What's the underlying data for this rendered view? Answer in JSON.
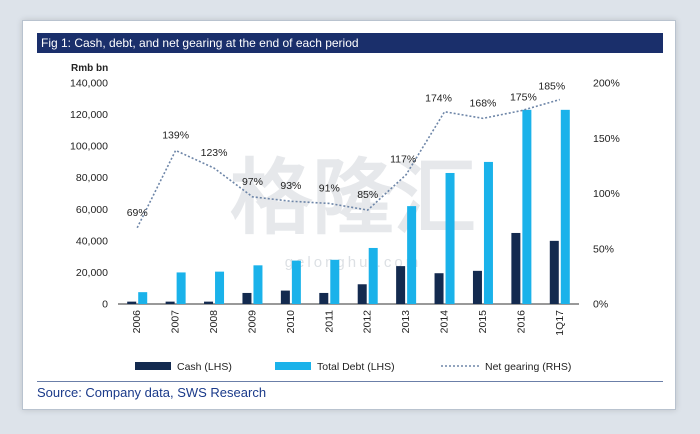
{
  "figure_title": "Fig 1: Cash, debt, and net gearing at the end of each period",
  "source": "Source: Company data, SWS Research",
  "watermark": "格隆汇",
  "watermark_url": "gelonghui.com",
  "colors": {
    "cash": "#132a4f",
    "debt": "#1ab2ea",
    "gearing": "#6e86a8",
    "title_bar": "#1a2f6b"
  },
  "chart_data": {
    "type": "bar",
    "categories": [
      "2006",
      "2007",
      "2008",
      "2009",
      "2010",
      "2011",
      "2012",
      "2013",
      "2014",
      "2015",
      "2016",
      "1Q17"
    ],
    "series": [
      {
        "name": "Cash (LHS)",
        "type": "bar",
        "axis": "left",
        "values": [
          1500,
          1500,
          1500,
          7000,
          8500,
          7000,
          12500,
          24000,
          19500,
          21000,
          45000,
          40000
        ]
      },
      {
        "name": "Total Debt (LHS)",
        "type": "bar",
        "axis": "left",
        "values": [
          7500,
          20000,
          20500,
          24500,
          27500,
          28000,
          35500,
          62000,
          83000,
          90000,
          123000,
          123000
        ]
      },
      {
        "name": "Net gearing (RHS)",
        "type": "line",
        "axis": "right",
        "values": [
          69,
          139,
          123,
          97,
          93,
          91,
          85,
          117,
          174,
          168,
          175,
          185
        ],
        "labels": [
          "69%",
          "139%",
          "123%",
          "97%",
          "93%",
          "91%",
          "85%",
          "117%",
          "174%",
          "168%",
          "175%",
          "185%"
        ]
      }
    ],
    "ylabel": "Rmb bn",
    "ylim": [
      0,
      140000
    ],
    "yticks": [
      "0",
      "20,000",
      "40,000",
      "60,000",
      "80,000",
      "100,000",
      "120,000",
      "140,000"
    ],
    "ytick_values": [
      0,
      20000,
      40000,
      60000,
      80000,
      100000,
      120000,
      140000
    ],
    "y2lim": [
      0,
      200
    ],
    "y2ticks": [
      "0%",
      "50%",
      "100%",
      "150%",
      "200%"
    ],
    "y2tick_values": [
      0,
      50,
      100,
      150,
      200
    ],
    "legend": [
      "Cash (LHS)",
      "Total Debt (LHS)",
      "Net gearing (RHS)"
    ],
    "legend_position": "bottom",
    "grid": false
  }
}
